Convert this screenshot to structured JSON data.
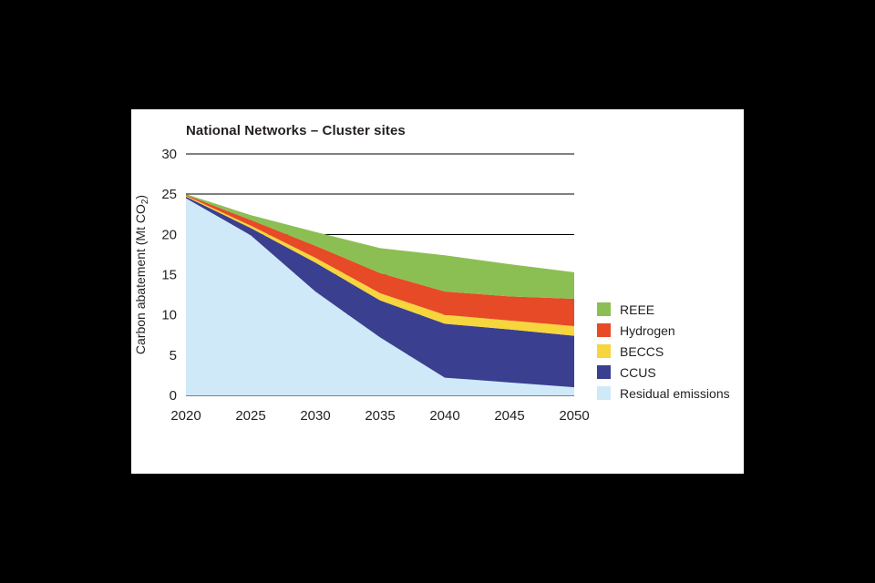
{
  "page": {
    "background_color": "#000000",
    "card_background_color": "#ffffff",
    "text_color": "#231f20",
    "gridline_color": "#000000"
  },
  "chart_data": {
    "type": "area",
    "stacked": true,
    "title": "National Networks – Cluster sites",
    "xlabel": "",
    "ylabel": "Carbon abatement (Mt CO2)",
    "ylabel_rich": {
      "prefix": "Carbon abatement (Mt CO",
      "sub": "2",
      "suffix": ")"
    },
    "x": [
      2020,
      2025,
      2030,
      2035,
      2040,
      2045,
      2050
    ],
    "xlim": [
      2020,
      2050
    ],
    "ylim": [
      0,
      30
    ],
    "yticks": [
      0,
      5,
      10,
      15,
      20,
      25,
      30
    ],
    "grid": "horizontal",
    "legend_position": "right",
    "series": [
      {
        "name": "Residual emissions",
        "color": "#cfe9f9",
        "values": [
          24.5,
          19.9,
          12.9,
          7.2,
          2.2,
          1.6,
          1.0
        ]
      },
      {
        "name": "CCUS",
        "color": "#3b3f8f",
        "values": [
          0.2,
          0.9,
          3.6,
          4.6,
          6.7,
          6.6,
          6.4
        ]
      },
      {
        "name": "BECCS",
        "color": "#f6d53d",
        "values": [
          0.1,
          0.3,
          0.6,
          0.9,
          1.1,
          1.1,
          1.2
        ]
      },
      {
        "name": "Hydrogen",
        "color": "#e74a27",
        "values": [
          0.1,
          0.7,
          1.5,
          2.5,
          2.9,
          3.0,
          3.4
        ]
      },
      {
        "name": "REEE",
        "color": "#8bbf53",
        "values": [
          0.1,
          0.6,
          1.7,
          3.1,
          4.5,
          4.0,
          3.3
        ]
      }
    ],
    "totals": [
      25.0,
      22.4,
      20.3,
      18.3,
      17.4,
      16.3,
      15.3
    ],
    "legend_order_top_to_bottom": [
      "REEE",
      "Hydrogen",
      "BECCS",
      "CCUS",
      "Residual emissions"
    ]
  }
}
